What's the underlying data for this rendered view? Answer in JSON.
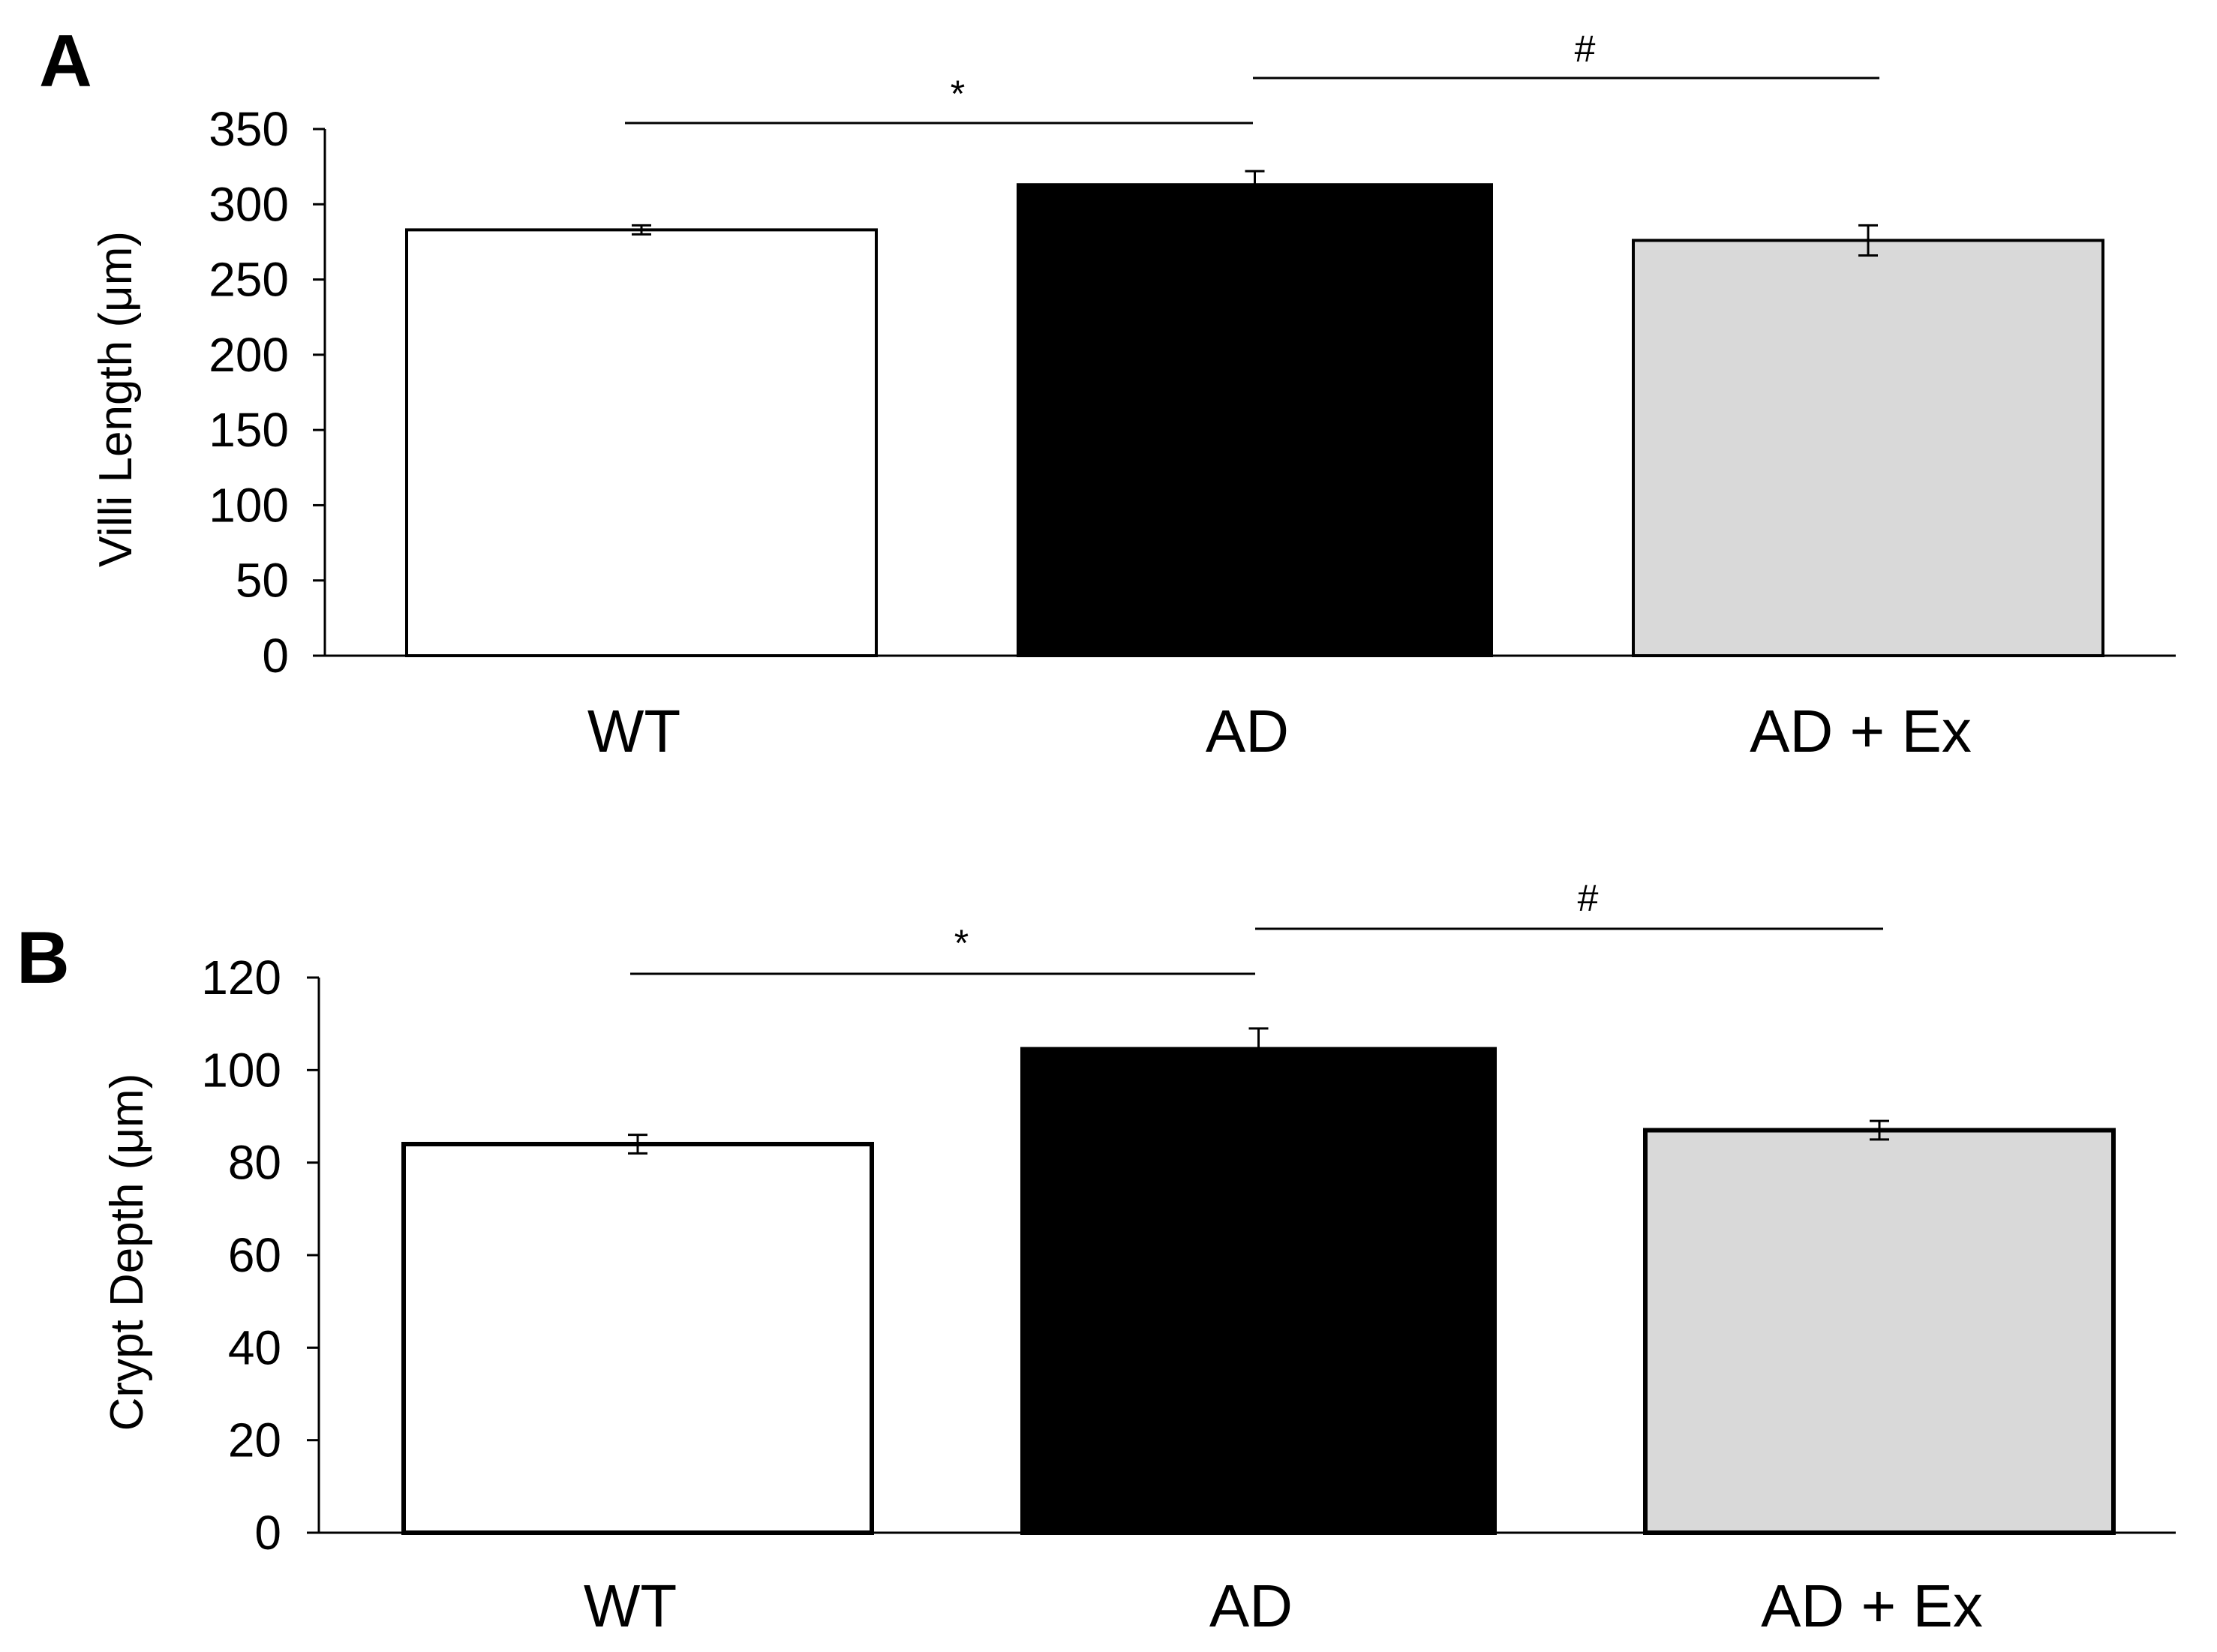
{
  "chart_data": [
    {
      "type": "bar",
      "panel_label": "A",
      "categories": [
        "WT",
        "AD",
        "AD + Ex"
      ],
      "values": [
        283,
        313,
        276
      ],
      "errors": [
        3,
        9,
        10
      ],
      "bar_colors": [
        "#ffffff",
        "#000000",
        "#d9d9d9"
      ],
      "ylabel": "Villi Length (μm)",
      "ylim": [
        0,
        350
      ],
      "yticks": [
        0,
        50,
        100,
        150,
        200,
        250,
        300,
        350
      ],
      "grid": false,
      "significance": [
        {
          "from": 0,
          "to": 1,
          "mark": "*"
        },
        {
          "from": 1,
          "to": 2,
          "mark": "#"
        }
      ]
    },
    {
      "type": "bar",
      "panel_label": "B",
      "categories": [
        "WT",
        "AD",
        "AD + Ex"
      ],
      "values": [
        84,
        104.5,
        87
      ],
      "errors": [
        2,
        4.5,
        2
      ],
      "bar_colors": [
        "#ffffff",
        "#000000",
        "#d9d9d9"
      ],
      "ylabel": "Crypt Depth (μm)",
      "ylim": [
        0,
        120
      ],
      "yticks": [
        0,
        20,
        40,
        60,
        80,
        100,
        120
      ],
      "grid": false,
      "significance": [
        {
          "from": 0,
          "to": 1,
          "mark": "*"
        },
        {
          "from": 1,
          "to": 2,
          "mark": "#"
        }
      ]
    }
  ]
}
